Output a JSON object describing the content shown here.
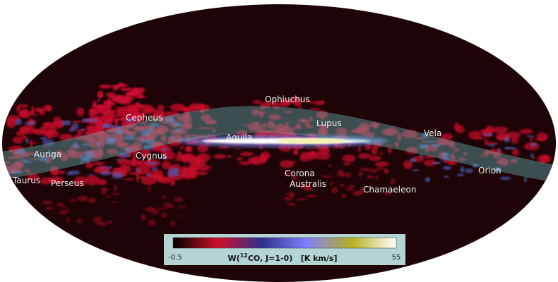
{
  "map": {
    "labels": [
      "Ophiuchus",
      "Cepheus",
      "Lupus",
      "Vela",
      "Aquila",
      "Auriga",
      "Cygnus",
      "Orion",
      "Corona",
      "Australis",
      "Taurus",
      "Perseus",
      "Chamaeleon"
    ],
    "colorbar": {
      "title_start": "W(",
      "title_sup": "12",
      "title_end": "CO, J=1-0)   [K km/s]",
      "min": -0.5,
      "max": 55,
      "colors": [
        "#000000",
        "#d0102a",
        "#303090",
        "#8080ff",
        "#b8b020",
        "#ffffff"
      ]
    }
  }
}
